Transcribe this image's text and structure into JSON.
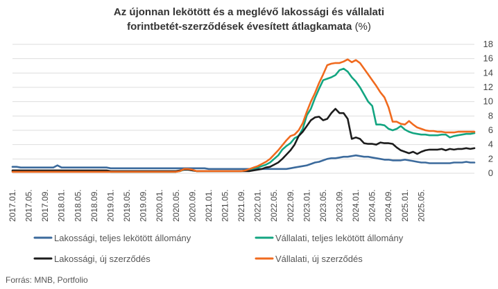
{
  "title": {
    "line1": "Az újonnan lekötött és a meglévő lakossági és vállalati",
    "line2": "forintbetét-szerződések évesített átlagkamata",
    "unit": "(%)"
  },
  "source": "Forrás: MNB, Portfolio",
  "colors": {
    "lak_allomany": "#3b6a9c",
    "vall_allomany": "#13a581",
    "lak_uj": "#1c1c1c",
    "vall_uj": "#f06a1e",
    "grid": "#dddddd",
    "axis_text": "#444444"
  },
  "chart_data": {
    "type": "line",
    "title": "Az újonnan lekötött és a meglévő lakossági és vállalati forintbetét-szerződések évesített átlagkamata (%)",
    "ylim": [
      0,
      18
    ],
    "yticks": [
      "0",
      "2",
      "4",
      "6",
      "8",
      "10",
      "12",
      "14",
      "16",
      "18"
    ],
    "y_axis_position": "right",
    "grid": true,
    "legend_position": "bottom",
    "x_tick_labels": [
      "2017.01.",
      "2017.05.",
      "2017.09.",
      "2018.01.",
      "2018.05.",
      "2018.09.",
      "2019.01.",
      "2019.05.",
      "2019.09.",
      "2020.01.",
      "2020.05.",
      "2020.09.",
      "2021.01.",
      "2021.05.",
      "2021.09.",
      "2022.01.",
      "2022.05.",
      "2022.09.",
      "2023.01.",
      "2023.05.",
      "2023.09.",
      "2024.01.",
      "2024.05.",
      "2024.09.",
      "2025.01.",
      "2025.05."
    ],
    "x_start": "2017.01.",
    "x_step": "1 hónap",
    "series": [
      {
        "name": "Lakossági, teljes lekötött állomány",
        "color": "#3b6a9c",
        "values": [
          0.9,
          0.9,
          0.8,
          0.8,
          0.8,
          0.8,
          0.8,
          0.8,
          0.8,
          0.8,
          0.8,
          1.1,
          0.8,
          0.8,
          0.8,
          0.8,
          0.8,
          0.8,
          0.8,
          0.8,
          0.8,
          0.8,
          0.8,
          0.8,
          0.7,
          0.7,
          0.7,
          0.7,
          0.7,
          0.7,
          0.7,
          0.7,
          0.7,
          0.7,
          0.7,
          0.7,
          0.7,
          0.7,
          0.7,
          0.7,
          0.7,
          0.7,
          0.7,
          0.7,
          0.7,
          0.7,
          0.7,
          0.7,
          0.6,
          0.6,
          0.6,
          0.6,
          0.6,
          0.6,
          0.6,
          0.6,
          0.6,
          0.6,
          0.6,
          0.6,
          0.6,
          0.6,
          0.6,
          0.6,
          0.6,
          0.6,
          0.6,
          0.6,
          0.7,
          0.8,
          0.9,
          1.0,
          1.1,
          1.3,
          1.5,
          1.6,
          1.8,
          2.0,
          2.1,
          2.1,
          2.2,
          2.3,
          2.3,
          2.4,
          2.5,
          2.4,
          2.3,
          2.3,
          2.2,
          2.1,
          2.0,
          1.9,
          1.9,
          1.8,
          1.8,
          1.8,
          1.9,
          1.8,
          1.7,
          1.6,
          1.5,
          1.5,
          1.4,
          1.4,
          1.4,
          1.4,
          1.4,
          1.4,
          1.5,
          1.5,
          1.5,
          1.6,
          1.5,
          1.5
        ]
      },
      {
        "name": "Vállalati, teljes lekötött állomány",
        "color": "#13a581",
        "values": [
          0.3,
          0.3,
          0.3,
          0.3,
          0.3,
          0.3,
          0.3,
          0.3,
          0.3,
          0.3,
          0.3,
          0.3,
          0.3,
          0.3,
          0.3,
          0.3,
          0.3,
          0.3,
          0.3,
          0.3,
          0.3,
          0.3,
          0.3,
          0.3,
          0.2,
          0.2,
          0.2,
          0.2,
          0.2,
          0.2,
          0.2,
          0.2,
          0.2,
          0.2,
          0.2,
          0.2,
          0.2,
          0.2,
          0.2,
          0.2,
          0.2,
          0.3,
          0.5,
          0.5,
          0.4,
          0.3,
          0.3,
          0.3,
          0.3,
          0.3,
          0.3,
          0.3,
          0.3,
          0.3,
          0.3,
          0.3,
          0.3,
          0.4,
          0.5,
          0.7,
          0.8,
          1.0,
          1.2,
          1.5,
          2.0,
          2.5,
          3.3,
          3.8,
          4.2,
          4.9,
          5.2,
          6.2,
          8.1,
          9.0,
          10.5,
          11.8,
          13.0,
          13.2,
          13.4,
          13.7,
          14.4,
          14.6,
          14.2,
          13.4,
          12.8,
          12.0,
          11.0,
          10.0,
          9.4,
          6.8,
          6.8,
          6.7,
          6.2,
          6.0,
          6.2,
          6.6,
          6.1,
          5.8,
          5.6,
          5.5,
          5.4,
          5.4,
          5.3,
          5.3,
          5.3,
          5.4,
          5.4,
          5.0,
          5.2,
          5.3,
          5.4,
          5.5,
          5.5,
          5.6
        ]
      },
      {
        "name": "Lakossági, új szerződés",
        "color": "#1c1c1c",
        "values": [
          0.4,
          0.4,
          0.4,
          0.4,
          0.4,
          0.4,
          0.4,
          0.4,
          0.4,
          0.4,
          0.4,
          0.4,
          0.4,
          0.4,
          0.4,
          0.4,
          0.4,
          0.4,
          0.4,
          0.4,
          0.4,
          0.4,
          0.4,
          0.4,
          0.3,
          0.3,
          0.3,
          0.3,
          0.3,
          0.3,
          0.3,
          0.3,
          0.3,
          0.3,
          0.3,
          0.3,
          0.3,
          0.3,
          0.3,
          0.3,
          0.3,
          0.4,
          0.5,
          0.5,
          0.4,
          0.3,
          0.3,
          0.3,
          0.3,
          0.3,
          0.3,
          0.3,
          0.3,
          0.3,
          0.3,
          0.3,
          0.3,
          0.3,
          0.3,
          0.4,
          0.5,
          0.6,
          0.8,
          0.9,
          1.2,
          1.5,
          2.0,
          2.6,
          3.2,
          4.0,
          5.2,
          5.8,
          6.6,
          7.4,
          7.8,
          7.9,
          7.4,
          7.6,
          8.4,
          9.0,
          8.4,
          8.4,
          7.6,
          4.8,
          5.0,
          4.8,
          4.2,
          4.1,
          4.1,
          4.0,
          4.3,
          4.2,
          4.2,
          4.1,
          3.6,
          3.2,
          3.0,
          2.8,
          3.0,
          2.7,
          3.0,
          3.2,
          3.3,
          3.3,
          3.3,
          3.4,
          3.2,
          3.4,
          3.3,
          3.4,
          3.4,
          3.5,
          3.4,
          3.5
        ]
      },
      {
        "name": "Vállalati, új szerződés",
        "color": "#f06a1e",
        "values": [
          0.2,
          0.2,
          0.2,
          0.2,
          0.2,
          0.2,
          0.2,
          0.2,
          0.2,
          0.2,
          0.2,
          0.2,
          0.2,
          0.2,
          0.2,
          0.2,
          0.2,
          0.2,
          0.2,
          0.2,
          0.2,
          0.2,
          0.2,
          0.2,
          0.2,
          0.2,
          0.2,
          0.2,
          0.2,
          0.2,
          0.2,
          0.2,
          0.2,
          0.2,
          0.2,
          0.2,
          0.2,
          0.2,
          0.2,
          0.2,
          0.2,
          0.3,
          0.6,
          0.6,
          0.5,
          0.3,
          0.3,
          0.3,
          0.3,
          0.3,
          0.3,
          0.3,
          0.3,
          0.3,
          0.3,
          0.3,
          0.3,
          0.4,
          0.6,
          0.8,
          1.0,
          1.3,
          1.6,
          2.0,
          2.6,
          3.2,
          3.9,
          4.6,
          5.2,
          5.4,
          6.0,
          7.0,
          8.6,
          10.0,
          11.2,
          12.6,
          13.8,
          15.1,
          15.3,
          15.4,
          15.4,
          15.6,
          15.9,
          15.5,
          15.8,
          15.4,
          14.6,
          13.8,
          13.0,
          12.2,
          11.3,
          10.6,
          9.2,
          7.2,
          7.2,
          6.9,
          6.8,
          7.3,
          6.8,
          6.4,
          6.2,
          6.0,
          5.9,
          5.9,
          5.8,
          5.8,
          5.7,
          5.7,
          5.7,
          5.8,
          5.8,
          5.8,
          5.8,
          5.8
        ]
      }
    ]
  }
}
